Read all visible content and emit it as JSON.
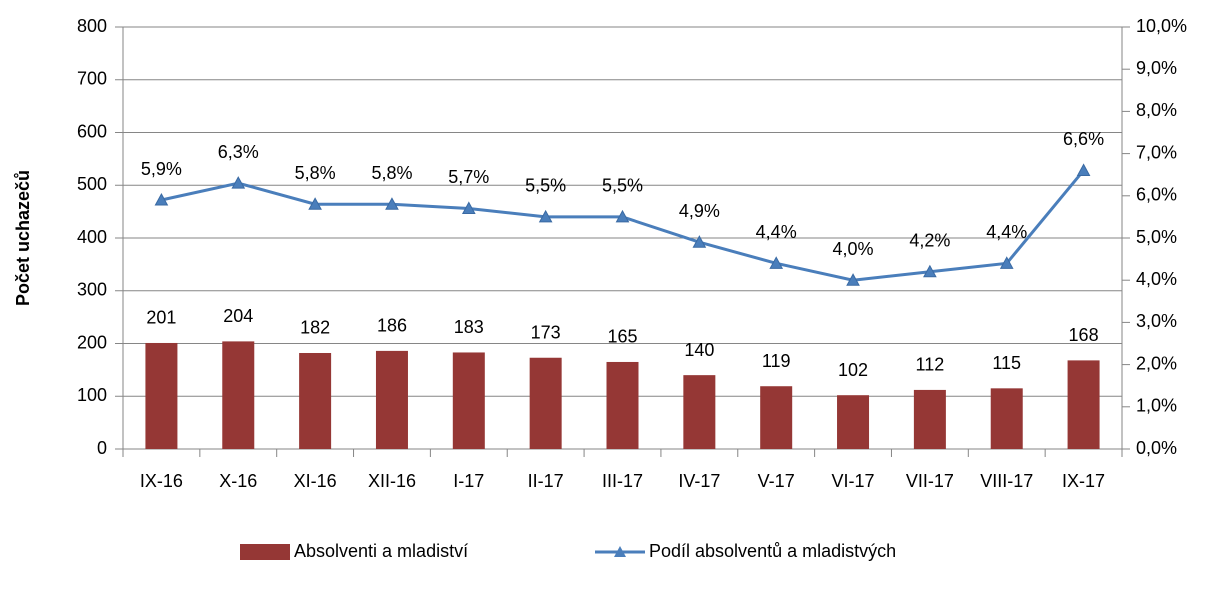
{
  "chart_data": {
    "type": "bar",
    "y_label": "Počet uchazečů",
    "categories": [
      "IX-16",
      "X-16",
      "XI-16",
      "XII-16",
      "I-17",
      "II-17",
      "III-17",
      "IV-17",
      "V-17",
      "VI-17",
      "VII-17",
      "VIII-17",
      "IX-17"
    ],
    "series": [
      {
        "name": "Absolventi a mladiství",
        "type": "bar",
        "color": "#953735",
        "values": [
          201,
          204,
          182,
          186,
          183,
          173,
          165,
          140,
          119,
          102,
          112,
          115,
          168
        ]
      },
      {
        "name": "Podíl absolventů a mladistvých",
        "type": "line",
        "axis": "y2",
        "color": "#4a7ebb",
        "values": [
          5.9,
          6.3,
          5.8,
          5.8,
          5.7,
          5.5,
          5.5,
          4.9,
          4.4,
          4.0,
          4.2,
          4.4,
          6.6
        ],
        "value_labels": [
          "5,9%",
          "6,3%",
          "5,8%",
          "5,8%",
          "5,7%",
          "5,5%",
          "5,5%",
          "4,9%",
          "4,4%",
          "4,0%",
          "4,2%",
          "4,4%",
          "6,6%"
        ]
      }
    ],
    "ylim": [
      0,
      800
    ],
    "yticks": [
      0,
      100,
      200,
      300,
      400,
      500,
      600,
      700,
      800
    ],
    "y2lim": [
      0,
      10
    ],
    "y2ticks": [
      {
        "value": 0,
        "label": "0,0%"
      },
      {
        "value": 1,
        "label": "1,0%"
      },
      {
        "value": 2,
        "label": "2,0%"
      },
      {
        "value": 3,
        "label": "3,0%"
      },
      {
        "value": 4,
        "label": "4,0%"
      },
      {
        "value": 5,
        "label": "5,0%"
      },
      {
        "value": 6,
        "label": "6,0%"
      },
      {
        "value": 7,
        "label": "7,0%"
      },
      {
        "value": 8,
        "label": "8,0%"
      },
      {
        "value": 9,
        "label": "9,0%"
      },
      {
        "value": 10,
        "label": "10,0%"
      }
    ],
    "grid": true,
    "legend": "bottom"
  }
}
